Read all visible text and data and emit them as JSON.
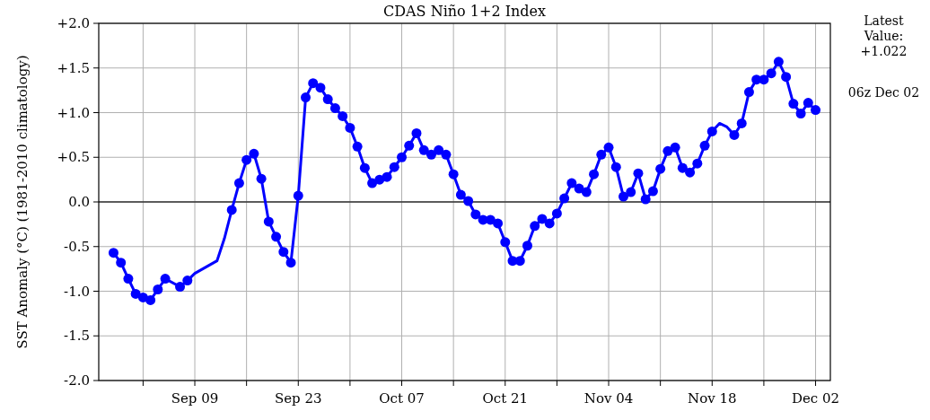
{
  "chart_data": {
    "type": "line",
    "title": "CDAS Niño 1+2 Index",
    "ylabel": "SST Anomaly (°C) (1981-2010 climatology)",
    "xlim": [
      "--08-27",
      "--12-04"
    ],
    "xticks": [
      {
        "value": "--09-02",
        "label": null
      },
      {
        "value": "--09-09",
        "label": "Sep 09"
      },
      {
        "value": "--09-16",
        "label": null
      },
      {
        "value": "--09-23",
        "label": "Sep 23"
      },
      {
        "value": "--09-30",
        "label": null
      },
      {
        "value": "--10-07",
        "label": "Oct 07"
      },
      {
        "value": "--10-14",
        "label": null
      },
      {
        "value": "--10-21",
        "label": "Oct 21"
      },
      {
        "value": "--10-28",
        "label": null
      },
      {
        "value": "--11-04",
        "label": "Nov 04"
      },
      {
        "value": "--11-11",
        "label": null
      },
      {
        "value": "--11-18",
        "label": "Nov 18"
      },
      {
        "value": "--11-25",
        "label": null
      },
      {
        "value": "--12-02",
        "label": "Dec 02"
      }
    ],
    "ylim": [
      -2,
      2
    ],
    "yticks": [
      {
        "value": -2,
        "label": "-2.0"
      },
      {
        "value": -1.5,
        "label": "-1.5"
      },
      {
        "value": -1,
        "label": "-1.0"
      },
      {
        "value": -0.5,
        "label": "-0.5"
      },
      {
        "value": 0,
        "label": "0.0"
      },
      {
        "value": 0.5,
        "label": "+0.5"
      },
      {
        "value": 1,
        "label": "+1.0"
      },
      {
        "value": 1.5,
        "label": "+1.5"
      },
      {
        "value": 2,
        "label": "+2.0"
      }
    ],
    "grid": true,
    "ref_lines": [
      {
        "axis": "y",
        "value": 0,
        "color": "#333333"
      }
    ],
    "annotations": [
      "Latest Value: +1.022",
      "06z Dec 02"
    ],
    "series": [
      {
        "type": "line",
        "marker": "none",
        "color": "#0000ff",
        "x": [
          "--08-29",
          "--08-30",
          "--08-31",
          "--09-01",
          "--09-02",
          "--09-03",
          "--09-04",
          "--09-05",
          "--09-07",
          "--09-08",
          "--09-09",
          "--09-12",
          "--09-13",
          "--09-14",
          "--09-15",
          "--09-16",
          "--09-17",
          "--09-18",
          "--09-19",
          "--09-20",
          "--09-21",
          "--09-22",
          "--09-23",
          "--09-24",
          "--09-25",
          "--09-26",
          "--09-27",
          "--09-28",
          "--09-29",
          "--09-30",
          "--10-01",
          "--10-02",
          "--10-03",
          "--10-04",
          "--10-05",
          "--10-06",
          "--10-07",
          "--10-08",
          "--10-09",
          "--10-10",
          "--10-11",
          "--10-12",
          "--10-13",
          "--10-14",
          "--10-15",
          "--10-16",
          "--10-17",
          "--10-18",
          "--10-19",
          "--10-20",
          "--10-21",
          "--10-22",
          "--10-23",
          "--10-24",
          "--10-25",
          "--10-26",
          "--10-27",
          "--10-28",
          "--10-29",
          "--10-30",
          "--10-31",
          "--11-01",
          "--11-02",
          "--11-03",
          "--11-04",
          "--11-05",
          "--11-06",
          "--11-07",
          "--11-08",
          "--11-09",
          "--11-10",
          "--11-11",
          "--11-12",
          "--11-13",
          "--11-14",
          "--11-15",
          "--11-16",
          "--11-17",
          "--11-18",
          "--11-19",
          "--11-20",
          "--11-21",
          "--11-22",
          "--11-23",
          "--11-24",
          "--11-25",
          "--11-26",
          "--11-27",
          "--11-28",
          "--11-29",
          "--11-30",
          "--12-01",
          "--12-02"
        ],
        "values": [
          -0.57,
          -0.68,
          -0.86,
          -1.03,
          -1.07,
          -1.1,
          -0.98,
          -0.86,
          -0.95,
          -0.88,
          -0.8,
          -0.66,
          -0.41,
          -0.09,
          0.21,
          0.47,
          0.54,
          0.26,
          -0.22,
          -0.39,
          -0.56,
          -0.68,
          0.07,
          1.17,
          1.33,
          1.28,
          1.15,
          1.05,
          0.96,
          0.83,
          0.62,
          0.38,
          0.21,
          0.25,
          0.28,
          0.39,
          0.5,
          0.63,
          0.77,
          0.58,
          0.53,
          0.58,
          0.53,
          0.31,
          0.08,
          0.01,
          -0.14,
          -0.2,
          -0.2,
          -0.24,
          -0.45,
          -0.66,
          -0.66,
          -0.49,
          -0.27,
          -0.19,
          -0.24,
          -0.13,
          0.04,
          0.21,
          0.15,
          0.11,
          0.31,
          0.53,
          0.61,
          0.39,
          0.06,
          0.11,
          0.32,
          0.03,
          0.12,
          0.37,
          0.57,
          0.61,
          0.38,
          0.33,
          0.43,
          0.63,
          0.79,
          0.88,
          0.84,
          0.75,
          0.88,
          1.23,
          1.37,
          1.37,
          1.44,
          1.57,
          1.4,
          1.1,
          0.99,
          1.11,
          1.03
        ]
      },
      {
        "type": "scatter",
        "marker": "circle",
        "color": "#0000ff",
        "x": [
          "--08-29",
          "--08-30",
          "--08-31",
          "--09-01",
          "--09-02",
          "--09-03",
          "--09-04",
          "--09-05",
          "--09-07",
          "--09-08",
          "--09-14",
          "--09-15",
          "--09-16",
          "--09-17",
          "--09-18",
          "--09-19",
          "--09-20",
          "--09-21",
          "--09-22",
          "--09-23",
          "--09-24",
          "--09-25",
          "--09-26",
          "--09-27",
          "--09-28",
          "--09-29",
          "--09-30",
          "--10-01",
          "--10-02",
          "--10-03",
          "--10-04",
          "--10-05",
          "--10-06",
          "--10-07",
          "--10-08",
          "--10-09",
          "--10-10",
          "--10-11",
          "--10-12",
          "--10-13",
          "--10-14",
          "--10-15",
          "--10-16",
          "--10-17",
          "--10-18",
          "--10-19",
          "--10-20",
          "--10-21",
          "--10-22",
          "--10-23",
          "--10-24",
          "--10-25",
          "--10-26",
          "--10-27",
          "--10-28",
          "--10-29",
          "--10-30",
          "--10-31",
          "--11-01",
          "--11-02",
          "--11-03",
          "--11-04",
          "--11-05",
          "--11-06",
          "--11-07",
          "--11-08",
          "--11-09",
          "--11-10",
          "--11-11",
          "--11-12",
          "--11-13",
          "--11-14",
          "--11-15",
          "--11-16",
          "--11-17",
          "--11-18",
          "--11-21",
          "--11-22",
          "--11-23",
          "--11-24",
          "--11-25",
          "--11-26",
          "--11-27",
          "--11-28",
          "--11-29",
          "--11-30",
          "--12-01",
          "--12-02"
        ],
        "values": [
          -0.57,
          -0.68,
          -0.86,
          -1.03,
          -1.07,
          -1.1,
          -0.98,
          -0.86,
          -0.95,
          -0.88,
          -0.09,
          0.21,
          0.47,
          0.54,
          0.26,
          -0.22,
          -0.39,
          -0.56,
          -0.68,
          0.07,
          1.17,
          1.33,
          1.28,
          1.15,
          1.05,
          0.96,
          0.83,
          0.62,
          0.38,
          0.21,
          0.25,
          0.28,
          0.39,
          0.5,
          0.63,
          0.77,
          0.58,
          0.53,
          0.58,
          0.53,
          0.31,
          0.08,
          0.01,
          -0.14,
          -0.2,
          -0.2,
          -0.24,
          -0.45,
          -0.66,
          -0.66,
          -0.49,
          -0.27,
          -0.19,
          -0.24,
          -0.13,
          0.04,
          0.21,
          0.15,
          0.11,
          0.31,
          0.53,
          0.61,
          0.39,
          0.06,
          0.11,
          0.32,
          0.03,
          0.12,
          0.37,
          0.57,
          0.61,
          0.38,
          0.33,
          0.43,
          0.63,
          0.79,
          0.75,
          0.88,
          1.23,
          1.37,
          1.37,
          1.44,
          1.57,
          1.4,
          1.1,
          0.99,
          1.11,
          1.03
        ]
      }
    ]
  }
}
